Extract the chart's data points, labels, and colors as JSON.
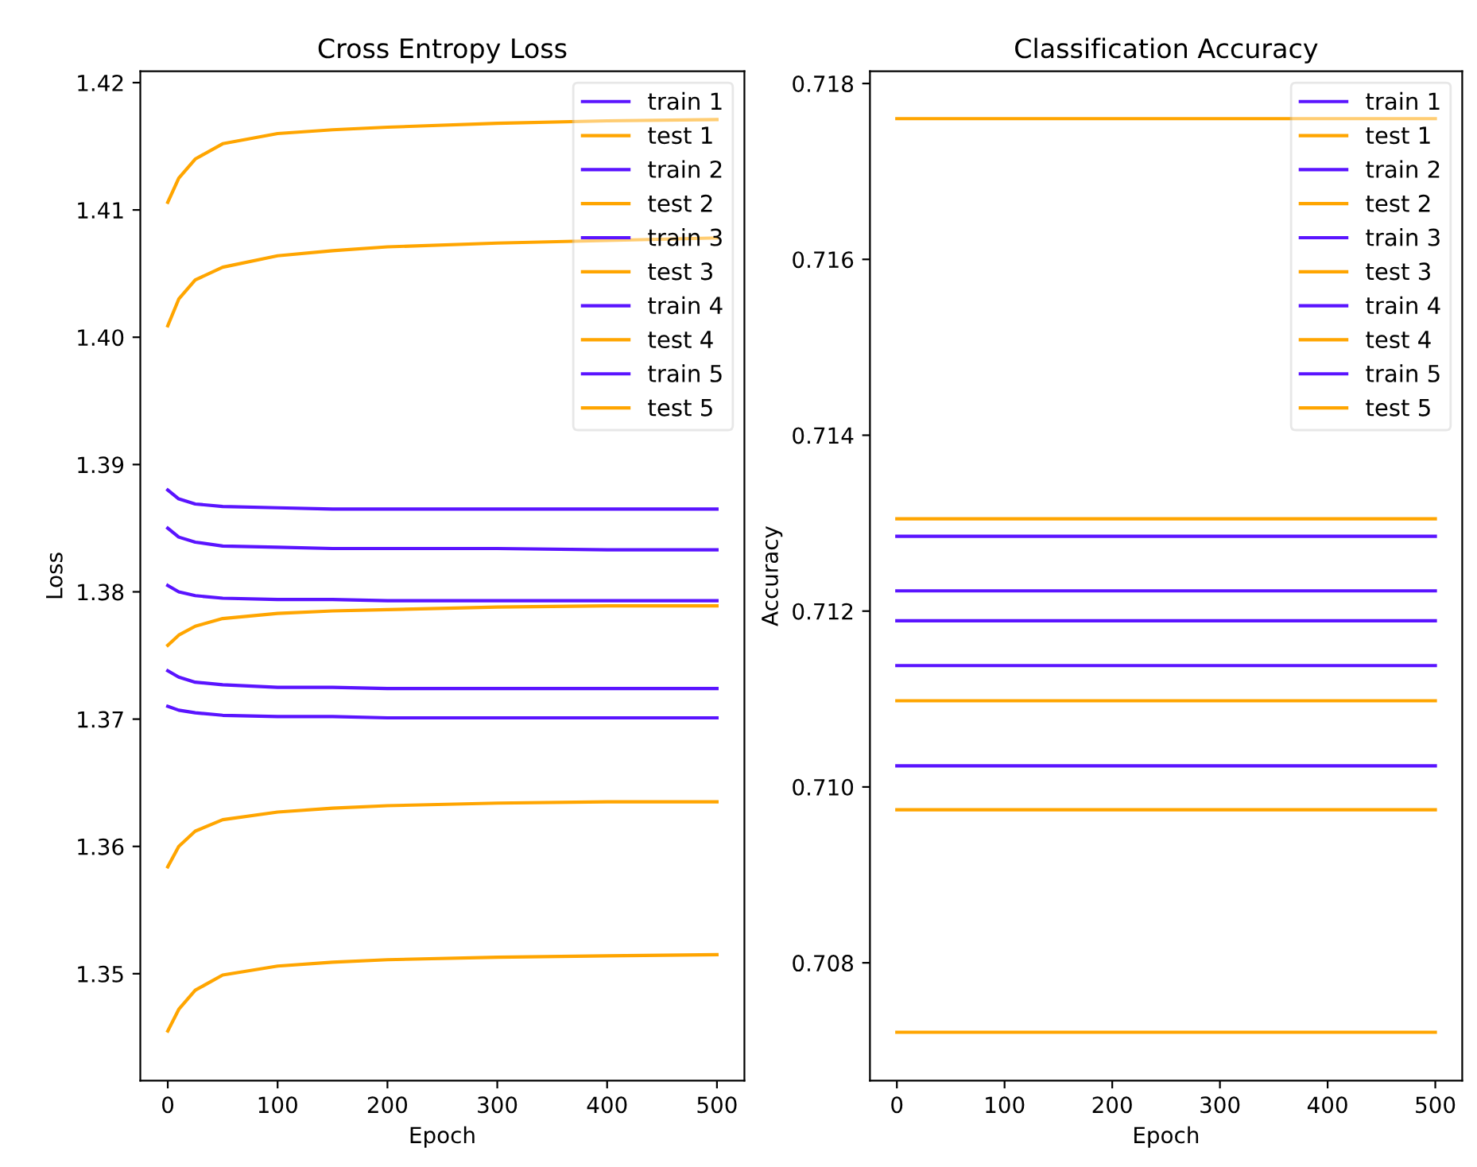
{
  "chart_data": [
    {
      "type": "line",
      "title": "Cross Entropy Loss",
      "xlabel": "Epoch",
      "ylabel": "Loss",
      "x": [
        0,
        10,
        25,
        50,
        100,
        150,
        200,
        300,
        400,
        500
      ],
      "xlim": [
        -25,
        525
      ],
      "xticks": [
        0,
        100,
        200,
        300,
        400,
        500
      ],
      "ylim": [
        1.3416,
        1.4209
      ],
      "yticks": [
        1.35,
        1.36,
        1.37,
        1.38,
        1.39,
        {
          "value": 1.4,
          "label": "1.40"
        },
        1.41,
        1.42
      ],
      "grid": false,
      "legend": "top right",
      "marker": "none",
      "line_style": "solid",
      "series": [
        {
          "name": "train 1",
          "color": "#5a14ff",
          "values": [
            1.388,
            1.3873,
            1.3869,
            1.3867,
            1.3866,
            1.3865,
            1.3865,
            1.3865,
            1.3865,
            1.3865
          ]
        },
        {
          "name": "test 1",
          "color": "#ffa500",
          "values": [
            1.4106,
            1.4125,
            1.414,
            1.4152,
            1.416,
            1.4163,
            1.4165,
            1.4168,
            1.417,
            1.4171
          ]
        },
        {
          "name": "train 2",
          "color": "#5a14ff",
          "values": [
            1.385,
            1.3843,
            1.3839,
            1.3836,
            1.3835,
            1.3834,
            1.3834,
            1.3834,
            1.3833,
            1.3833
          ]
        },
        {
          "name": "test 2",
          "color": "#ffa500",
          "values": [
            1.4009,
            1.403,
            1.4045,
            1.4055,
            1.4064,
            1.4068,
            1.4071,
            1.4074,
            1.4076,
            1.4078
          ]
        },
        {
          "name": "train 3",
          "color": "#5a14ff",
          "values": [
            1.3805,
            1.38,
            1.3797,
            1.3795,
            1.3794,
            1.3794,
            1.3793,
            1.3793,
            1.3793,
            1.3793
          ]
        },
        {
          "name": "test 3",
          "color": "#ffa500",
          "values": [
            1.3758,
            1.3766,
            1.3773,
            1.3779,
            1.3783,
            1.3785,
            1.3786,
            1.3788,
            1.3789,
            1.3789
          ]
        },
        {
          "name": "train 4",
          "color": "#5a14ff",
          "values": [
            1.3738,
            1.3733,
            1.3729,
            1.3727,
            1.3725,
            1.3725,
            1.3724,
            1.3724,
            1.3724,
            1.3724
          ]
        },
        {
          "name": "test 4",
          "color": "#ffa500",
          "values": [
            1.3584,
            1.36,
            1.3612,
            1.3621,
            1.3627,
            1.363,
            1.3632,
            1.3634,
            1.3635,
            1.3635
          ]
        },
        {
          "name": "train 5",
          "color": "#5a14ff",
          "values": [
            1.371,
            1.3707,
            1.3705,
            1.3703,
            1.3702,
            1.3702,
            1.3701,
            1.3701,
            1.3701,
            1.3701
          ]
        },
        {
          "name": "test 5",
          "color": "#ffa500",
          "values": [
            1.3455,
            1.3472,
            1.3487,
            1.3499,
            1.3506,
            1.3509,
            1.3511,
            1.3513,
            1.3514,
            1.3515
          ]
        }
      ]
    },
    {
      "type": "line",
      "title": "Classification Accuracy",
      "xlabel": "Epoch",
      "ylabel": "Accuracy",
      "x": [
        0,
        500
      ],
      "xlim": [
        -25,
        525
      ],
      "xticks": [
        0,
        100,
        200,
        300,
        400,
        500
      ],
      "ylim": [
        0.70666,
        0.71814
      ],
      "yticks": [
        0.708,
        {
          "value": 0.71,
          "label": "0.710"
        },
        0.712,
        0.714,
        0.716,
        0.718
      ],
      "grid": false,
      "legend": "top right",
      "marker": "none",
      "line_style": "solid",
      "series": [
        {
          "name": "train 1",
          "color": "#5a14ff",
          "values": [
            0.71285,
            0.71285
          ]
        },
        {
          "name": "test 1",
          "color": "#ffa500",
          "values": [
            0.7176,
            0.7176
          ]
        },
        {
          "name": "train 2",
          "color": "#5a14ff",
          "values": [
            0.71223,
            0.71223
          ]
        },
        {
          "name": "test 2",
          "color": "#ffa500",
          "values": [
            0.71305,
            0.71305
          ]
        },
        {
          "name": "train 3",
          "color": "#5a14ff",
          "values": [
            0.71189,
            0.71189
          ]
        },
        {
          "name": "test 3",
          "color": "#ffa500",
          "values": [
            0.71098,
            0.71098
          ]
        },
        {
          "name": "train 4",
          "color": "#5a14ff",
          "values": [
            0.71138,
            0.71138
          ]
        },
        {
          "name": "test 4",
          "color": "#ffa500",
          "values": [
            0.70974,
            0.70974
          ]
        },
        {
          "name": "train 5",
          "color": "#5a14ff",
          "values": [
            0.71024,
            0.71024
          ]
        },
        {
          "name": "test 5",
          "color": "#ffa500",
          "values": [
            0.70721,
            0.70721
          ]
        }
      ]
    }
  ]
}
